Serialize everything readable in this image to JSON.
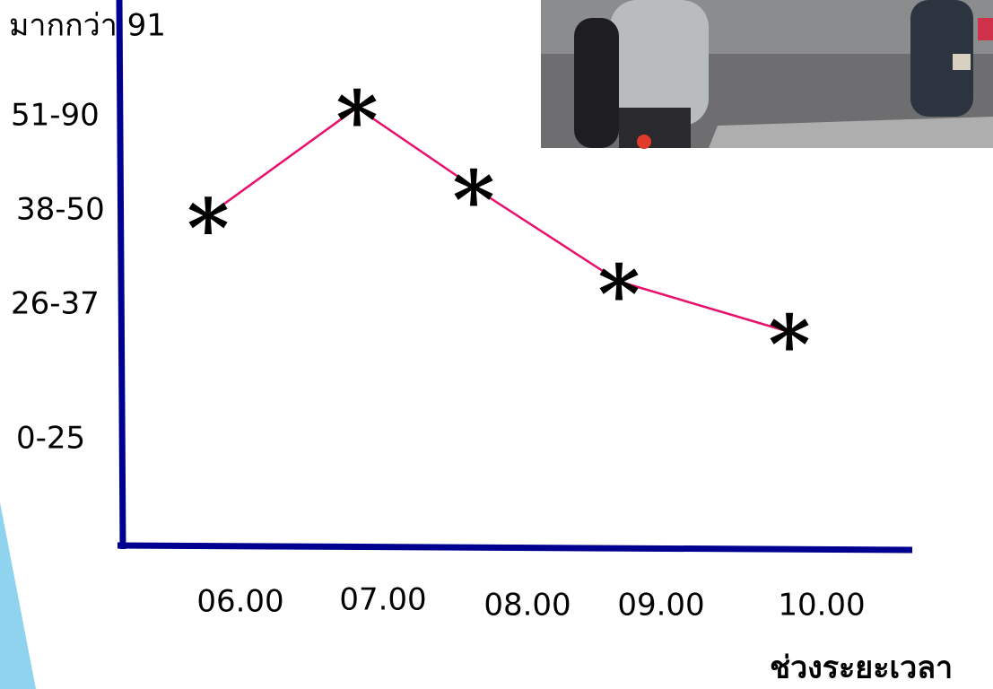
{
  "chart_data": {
    "type": "line",
    "y_categories": [
      "0-25",
      "26-37",
      "38-50",
      "51-90",
      "มากกว่า 91"
    ],
    "categories": [
      "06.00",
      "07.00",
      "08.00",
      "09.00",
      "10.00"
    ],
    "values": [
      1.95,
      3.1,
      2.25,
      1.25,
      0.8
    ],
    "color": "#e8106a",
    "axis_color": "#000090",
    "x_label": "ช่วงระยะเวลา"
  }
}
